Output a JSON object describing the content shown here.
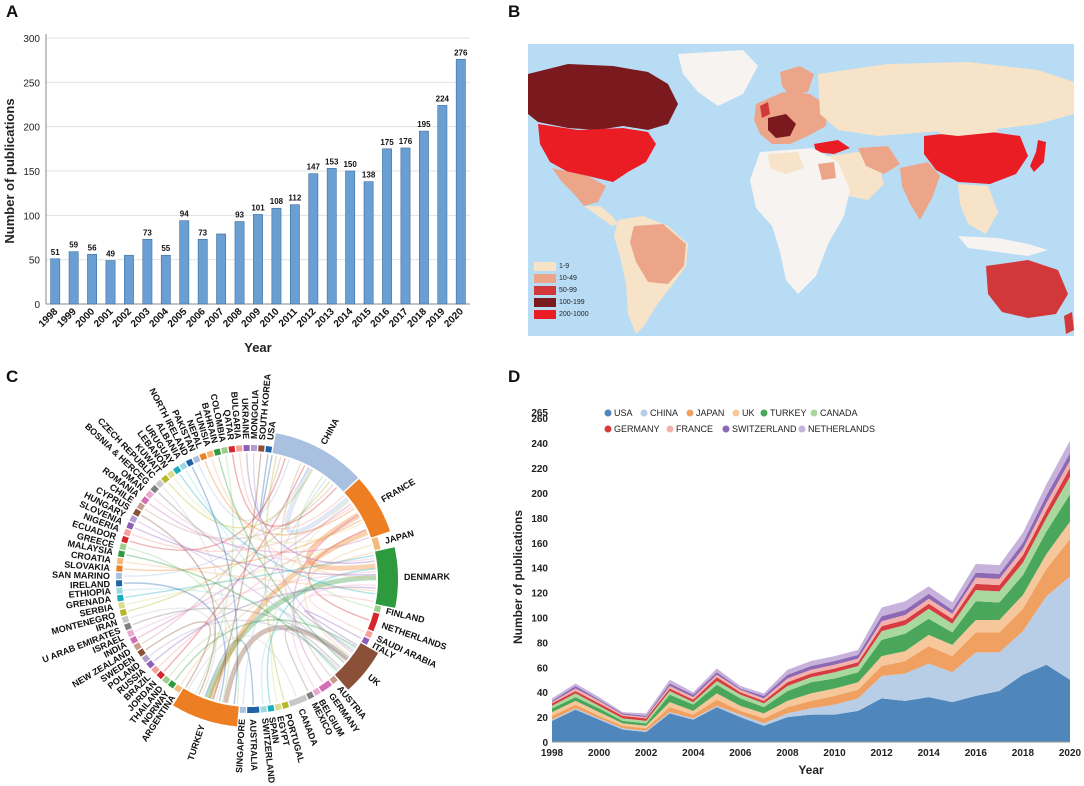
{
  "panels": {
    "a": "A",
    "b": "B",
    "c": "C",
    "d": "D"
  },
  "chart_data": [
    {
      "id": "A",
      "type": "bar",
      "xlabel": "Year",
      "ylabel": "Number of publications",
      "ylim": [
        0,
        300
      ],
      "yticks": [
        0,
        50,
        100,
        150,
        200,
        250,
        300
      ],
      "categories": [
        "1998",
        "1999",
        "2000",
        "2001",
        "2002",
        "2003",
        "2004",
        "2005",
        "2006",
        "2007",
        "2008",
        "2009",
        "2010",
        "2011",
        "2012",
        "2013",
        "2014",
        "2015",
        "2016",
        "2017",
        "2018",
        "2019",
        "2020"
      ],
      "values": [
        51,
        59,
        56,
        49,
        55,
        73,
        55,
        94,
        73,
        79,
        93,
        101,
        108,
        112,
        147,
        153,
        150,
        138,
        175,
        176,
        195,
        224,
        276
      ],
      "value_labels": [
        "51",
        "59",
        "56",
        "49",
        "",
        "73",
        "55",
        "94",
        "73",
        "",
        "93",
        "101",
        "108",
        "112",
        "147",
        "153",
        "150",
        "138",
        "175",
        "176",
        "195",
        "224",
        "276"
      ],
      "bar_color": "#6a9fd4"
    },
    {
      "id": "B",
      "type": "map",
      "legend": [
        {
          "label": "1-9",
          "color": "#f7e4c8"
        },
        {
          "label": "10-49",
          "color": "#eda58a"
        },
        {
          "label": "50-99",
          "color": "#d2373a"
        },
        {
          "label": "100-199",
          "color": "#7a1a1f"
        },
        {
          "label": "200-1000",
          "color": "#ea1c24"
        }
      ],
      "ocean_color": "#b9dcf5"
    },
    {
      "id": "C",
      "type": "chord",
      "segments": [
        {
          "name": "USA",
          "color": "#1f62a8"
        },
        {
          "name": "CHINA",
          "color": "#a9c0e0"
        },
        {
          "name": "FRANCE",
          "color": "#ee7e22"
        },
        {
          "name": "JAPAN",
          "color": "#f4b97a"
        },
        {
          "name": "DENMARK",
          "color": "#2e9a3e"
        },
        {
          "name": "FINLAND",
          "color": "#9ad08c"
        },
        {
          "name": "NETHERLANDS",
          "color": "#d6282c"
        },
        {
          "name": "SAUDI ARABIA",
          "color": "#f4a09b"
        },
        {
          "name": "ITALY",
          "color": "#8b5fb8"
        },
        {
          "name": "UK",
          "color": "#8b5038"
        },
        {
          "name": "AUSTRIA",
          "color": "#c79c8f"
        },
        {
          "name": "GERMANY",
          "color": "#d36db5"
        },
        {
          "name": "BELGIUM",
          "color": "#e8a8cf"
        },
        {
          "name": "MEXICO",
          "color": "#808080"
        },
        {
          "name": "CANADA",
          "color": "#c8c8c8"
        },
        {
          "name": "PORTUGAL",
          "color": "#b6b72a"
        },
        {
          "name": "EGYPT",
          "color": "#dcdc8e"
        },
        {
          "name": "SPAIN",
          "color": "#19aebd"
        },
        {
          "name": "SWITZERLAND",
          "color": "#9bd8e0"
        },
        {
          "name": "AUSTRALIA",
          "color": "#1f62a8"
        },
        {
          "name": "SINGAPORE",
          "color": "#a9c0e0"
        },
        {
          "name": "TURKEY",
          "color": "#ee7e22"
        },
        {
          "name": "ARGENTINA",
          "color": "#f4b97a"
        },
        {
          "name": "NORWAY",
          "color": "#2e9a3e"
        },
        {
          "name": "THAILAND",
          "color": "#9ad08c"
        },
        {
          "name": "JORDAN",
          "color": "#d6282c"
        },
        {
          "name": "BRAZIL",
          "color": "#f4a09b"
        },
        {
          "name": "RUSSIA",
          "color": "#8b5fb8"
        },
        {
          "name": "POLAND",
          "color": "#b39cd0"
        },
        {
          "name": "SWEDEN",
          "color": "#8b5038"
        },
        {
          "name": "NEW ZEALAND",
          "color": "#c79c8f"
        },
        {
          "name": "INDIA",
          "color": "#d36db5"
        },
        {
          "name": "ISRAEL",
          "color": "#e8a8cf"
        },
        {
          "name": "U ARAB EMIRATES",
          "color": "#808080"
        },
        {
          "name": "IRAN",
          "color": "#c8c8c8"
        },
        {
          "name": "MONTENEGRO",
          "color": "#b6b72a"
        },
        {
          "name": "SERBIA",
          "color": "#dcdc8e"
        },
        {
          "name": "GRENADA",
          "color": "#19aebd"
        },
        {
          "name": "ETHIOPIA",
          "color": "#9bd8e0"
        },
        {
          "name": "IRELAND",
          "color": "#1f62a8"
        },
        {
          "name": "SAN MARINO",
          "color": "#a9c0e0"
        },
        {
          "name": "SLOVAKIA",
          "color": "#ee7e22"
        },
        {
          "name": "CROATIA",
          "color": "#f4b97a"
        },
        {
          "name": "MALAYSIA",
          "color": "#2e9a3e"
        },
        {
          "name": "GREECE",
          "color": "#9ad08c"
        },
        {
          "name": "ECUADOR",
          "color": "#d6282c"
        },
        {
          "name": "NIGERIA",
          "color": "#f4a09b"
        },
        {
          "name": "SLOVENIA",
          "color": "#8b5fb8"
        },
        {
          "name": "HUNGARY",
          "color": "#b39cd0"
        },
        {
          "name": "CYPRUS",
          "color": "#8b5038"
        },
        {
          "name": "CHILE",
          "color": "#c79c8f"
        },
        {
          "name": "ROMANIA",
          "color": "#d36db5"
        },
        {
          "name": "OMAN",
          "color": "#e8a8cf"
        },
        {
          "name": "BOSNIA & HERCEG",
          "color": "#808080"
        },
        {
          "name": "CZECH REPUBLIC",
          "color": "#c8c8c8"
        },
        {
          "name": "KUWAIT",
          "color": "#b6b72a"
        },
        {
          "name": "LEBANON",
          "color": "#dcdc8e"
        },
        {
          "name": "URUGUAY",
          "color": "#19aebd"
        },
        {
          "name": "ALBANIA",
          "color": "#9bd8e0"
        },
        {
          "name": "NORTH IRELAND",
          "color": "#1f62a8"
        },
        {
          "name": "PAKISTAN",
          "color": "#a9c0e0"
        },
        {
          "name": "NEPAL",
          "color": "#ee7e22"
        },
        {
          "name": "TUNISIA",
          "color": "#f4b97a"
        },
        {
          "name": "BAHRAIN",
          "color": "#2e9a3e"
        },
        {
          "name": "COLOMBIA",
          "color": "#9ad08c"
        },
        {
          "name": "QATAR",
          "color": "#d6282c"
        },
        {
          "name": "BULGARIA",
          "color": "#f4a09b"
        },
        {
          "name": "UKRAINE",
          "color": "#8b5fb8"
        },
        {
          "name": "MONGOLIA",
          "color": "#b39cd0"
        },
        {
          "name": "SOUTH KOREA",
          "color": "#8b5038"
        }
      ]
    },
    {
      "id": "D",
      "type": "area",
      "stacked": true,
      "xlabel": "Year",
      "ylabel": "Number of publications",
      "ylim": [
        0,
        265
      ],
      "yticks": [
        0,
        20,
        40,
        60,
        80,
        100,
        120,
        140,
        160,
        180,
        200,
        220,
        240,
        260,
        265
      ],
      "xticks": [
        1998,
        2000,
        2002,
        2004,
        2006,
        2008,
        2010,
        2012,
        2014,
        2016,
        2018,
        2020
      ],
      "x": [
        1998,
        1999,
        2000,
        2001,
        2002,
        2003,
        2004,
        2005,
        2006,
        2007,
        2008,
        2009,
        2010,
        2011,
        2012,
        2013,
        2014,
        2015,
        2016,
        2017,
        2018,
        2019,
        2020
      ],
      "series": [
        {
          "name": "USA",
          "color": "#4f86bb",
          "values": [
            17,
            26,
            18,
            10,
            8,
            23,
            18,
            28,
            20,
            13,
            20,
            22,
            22,
            25,
            35,
            33,
            36,
            32,
            37,
            41,
            54,
            62,
            50
          ]
        },
        {
          "name": "CHINA",
          "color": "#b8cde6",
          "values": [
            1,
            1,
            1,
            1,
            1,
            1,
            1,
            1,
            2,
            2,
            3,
            5,
            8,
            10,
            18,
            22,
            27,
            24,
            35,
            31,
            35,
            55,
            83
          ]
        },
        {
          "name": "JAPAN",
          "color": "#f0a060",
          "values": [
            3,
            3,
            2,
            2,
            2,
            4,
            3,
            5,
            3,
            4,
            5,
            6,
            7,
            7,
            8,
            10,
            14,
            13,
            16,
            16,
            18,
            22,
            30
          ]
        },
        {
          "name": "UK",
          "color": "#f5c79a",
          "values": [
            3,
            3,
            3,
            2,
            2,
            4,
            3,
            5,
            4,
            4,
            5,
            6,
            6,
            6,
            8,
            8,
            9,
            9,
            10,
            10,
            11,
            12,
            14
          ]
        },
        {
          "name": "TURKEY",
          "color": "#4aa65a",
          "values": [
            3,
            3,
            3,
            2,
            2,
            6,
            5,
            7,
            6,
            5,
            8,
            9,
            8,
            8,
            13,
            14,
            13,
            10,
            15,
            14,
            16,
            18,
            22
          ]
        },
        {
          "name": "CANADA",
          "color": "#a9d89e",
          "values": [
            2,
            3,
            2,
            2,
            2,
            3,
            2,
            3,
            3,
            3,
            4,
            4,
            5,
            5,
            7,
            7,
            8,
            7,
            9,
            9,
            10,
            11,
            14
          ]
        },
        {
          "name": "GERMANY",
          "color": "#d63c40",
          "values": [
            2,
            2,
            2,
            2,
            2,
            2,
            2,
            3,
            2,
            2,
            3,
            3,
            3,
            3,
            4,
            4,
            4,
            4,
            5,
            5,
            6,
            6,
            7
          ]
        },
        {
          "name": "FRANCE",
          "color": "#f4b0ab",
          "values": [
            1,
            2,
            2,
            1,
            1,
            2,
            2,
            2,
            2,
            2,
            3,
            3,
            3,
            3,
            4,
            4,
            4,
            4,
            5,
            5,
            5,
            6,
            6
          ]
        },
        {
          "name": "SWITZERLAND",
          "color": "#8c68b5",
          "values": [
            1,
            2,
            1,
            1,
            1,
            2,
            2,
            2,
            1,
            2,
            3,
            3,
            3,
            3,
            4,
            4,
            4,
            3,
            4,
            4,
            5,
            6,
            6
          ]
        },
        {
          "name": "NETHERLANDS",
          "color": "#c7b2dc",
          "values": [
            2,
            2,
            2,
            1,
            2,
            3,
            2,
            3,
            2,
            2,
            4,
            4,
            4,
            4,
            7,
            7,
            6,
            6,
            7,
            7,
            8,
            9,
            10
          ]
        }
      ]
    }
  ]
}
